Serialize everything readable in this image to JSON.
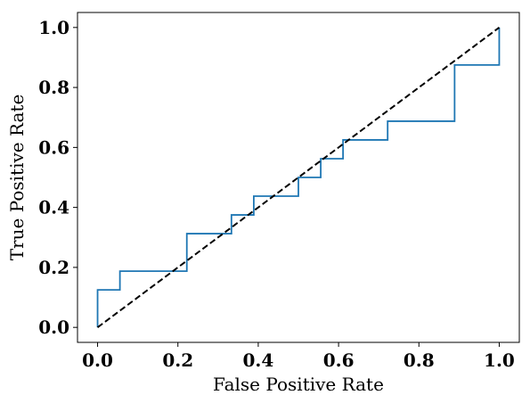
{
  "chart_data": {
    "type": "line",
    "title": "",
    "xlabel": "False Positive Rate",
    "ylabel": "True Positive Rate",
    "xlim": [
      -0.05,
      1.05
    ],
    "ylim": [
      -0.05,
      1.05
    ],
    "x_ticks": [
      0.0,
      0.2,
      0.4,
      0.6,
      0.8,
      1.0
    ],
    "x_tick_labels": [
      "0.0",
      "0.2",
      "0.4",
      "0.6",
      "0.8",
      "1.0"
    ],
    "y_ticks": [
      0.0,
      0.2,
      0.4,
      0.6,
      0.8,
      1.0
    ],
    "y_tick_labels": [
      "0.0",
      "0.2",
      "0.4",
      "0.6",
      "0.8",
      "1.0"
    ],
    "grid": false,
    "series": [
      {
        "color": "#1f77b4",
        "style": "solid",
        "x": [
          0.0,
          0.0,
          0.0556,
          0.0556,
          0.2222,
          0.2222,
          0.3333,
          0.3333,
          0.3889,
          0.3889,
          0.5,
          0.5,
          0.5556,
          0.5556,
          0.6111,
          0.6111,
          0.7222,
          0.7222,
          0.8889,
          0.8889,
          1.0,
          1.0
        ],
        "y": [
          0.0,
          0.125,
          0.125,
          0.1875,
          0.1875,
          0.3125,
          0.3125,
          0.375,
          0.375,
          0.4375,
          0.4375,
          0.5,
          0.5,
          0.5625,
          0.5625,
          0.625,
          0.625,
          0.6875,
          0.6875,
          0.875,
          0.875,
          1.0
        ]
      },
      {
        "color": "#000000",
        "style": "dashed",
        "x": [
          0.0,
          1.0
        ],
        "y": [
          0.0,
          1.0
        ]
      }
    ]
  }
}
